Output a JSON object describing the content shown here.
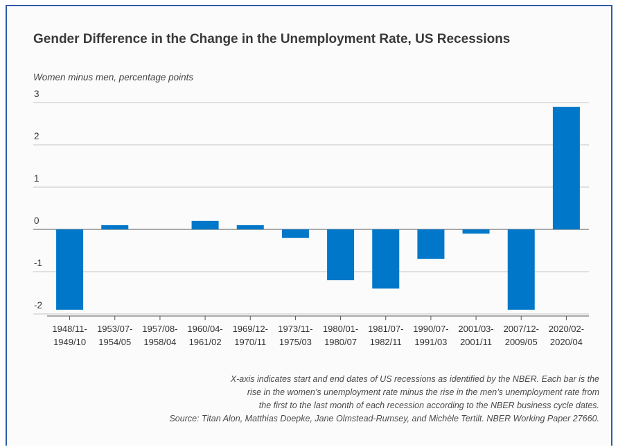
{
  "chart_data": {
    "type": "bar",
    "title": "Gender Difference in the Change in the Unemployment Rate, US Recessions",
    "ylabel": "Women minus men, percentage points",
    "xlabel": "",
    "ylim": [
      -2.05,
      3
    ],
    "yticks": [
      3,
      2,
      1,
      0,
      -1,
      -2
    ],
    "grid": true,
    "bar_color": "#0077c8",
    "categories": [
      "1948/11-\n1949/10",
      "1953/07-\n1954/05",
      "1957/08-\n1958/04",
      "1960/04-\n1961/02",
      "1969/12-\n1970/11",
      "1973/11-\n1975/03",
      "1980/01-\n1980/07",
      "1981/07-\n1982/11",
      "1990/07-\n1991/03",
      "2001/03-\n2001/11",
      "2007/12-\n2009/05",
      "2020/02-\n2020/04"
    ],
    "values": [
      -1.9,
      0.1,
      0.0,
      0.2,
      0.1,
      -0.2,
      -1.2,
      -1.4,
      -0.7,
      -0.1,
      -1.9,
      2.9
    ]
  },
  "notes": [
    "X-axis indicates start and end dates of US recessions as identified by the NBER. Each bar is the",
    "rise in the  women’s unemployment rate minus the rise in the men’s unemployment rate from",
    "the first to  the last month of each recession according to the NBER business cycle dates.",
    "Source: Titan Alon, Matthias Doepke, Jane Olmstead-Rumsey, and Michèle Tertilt. NBER Working Paper 27660."
  ]
}
